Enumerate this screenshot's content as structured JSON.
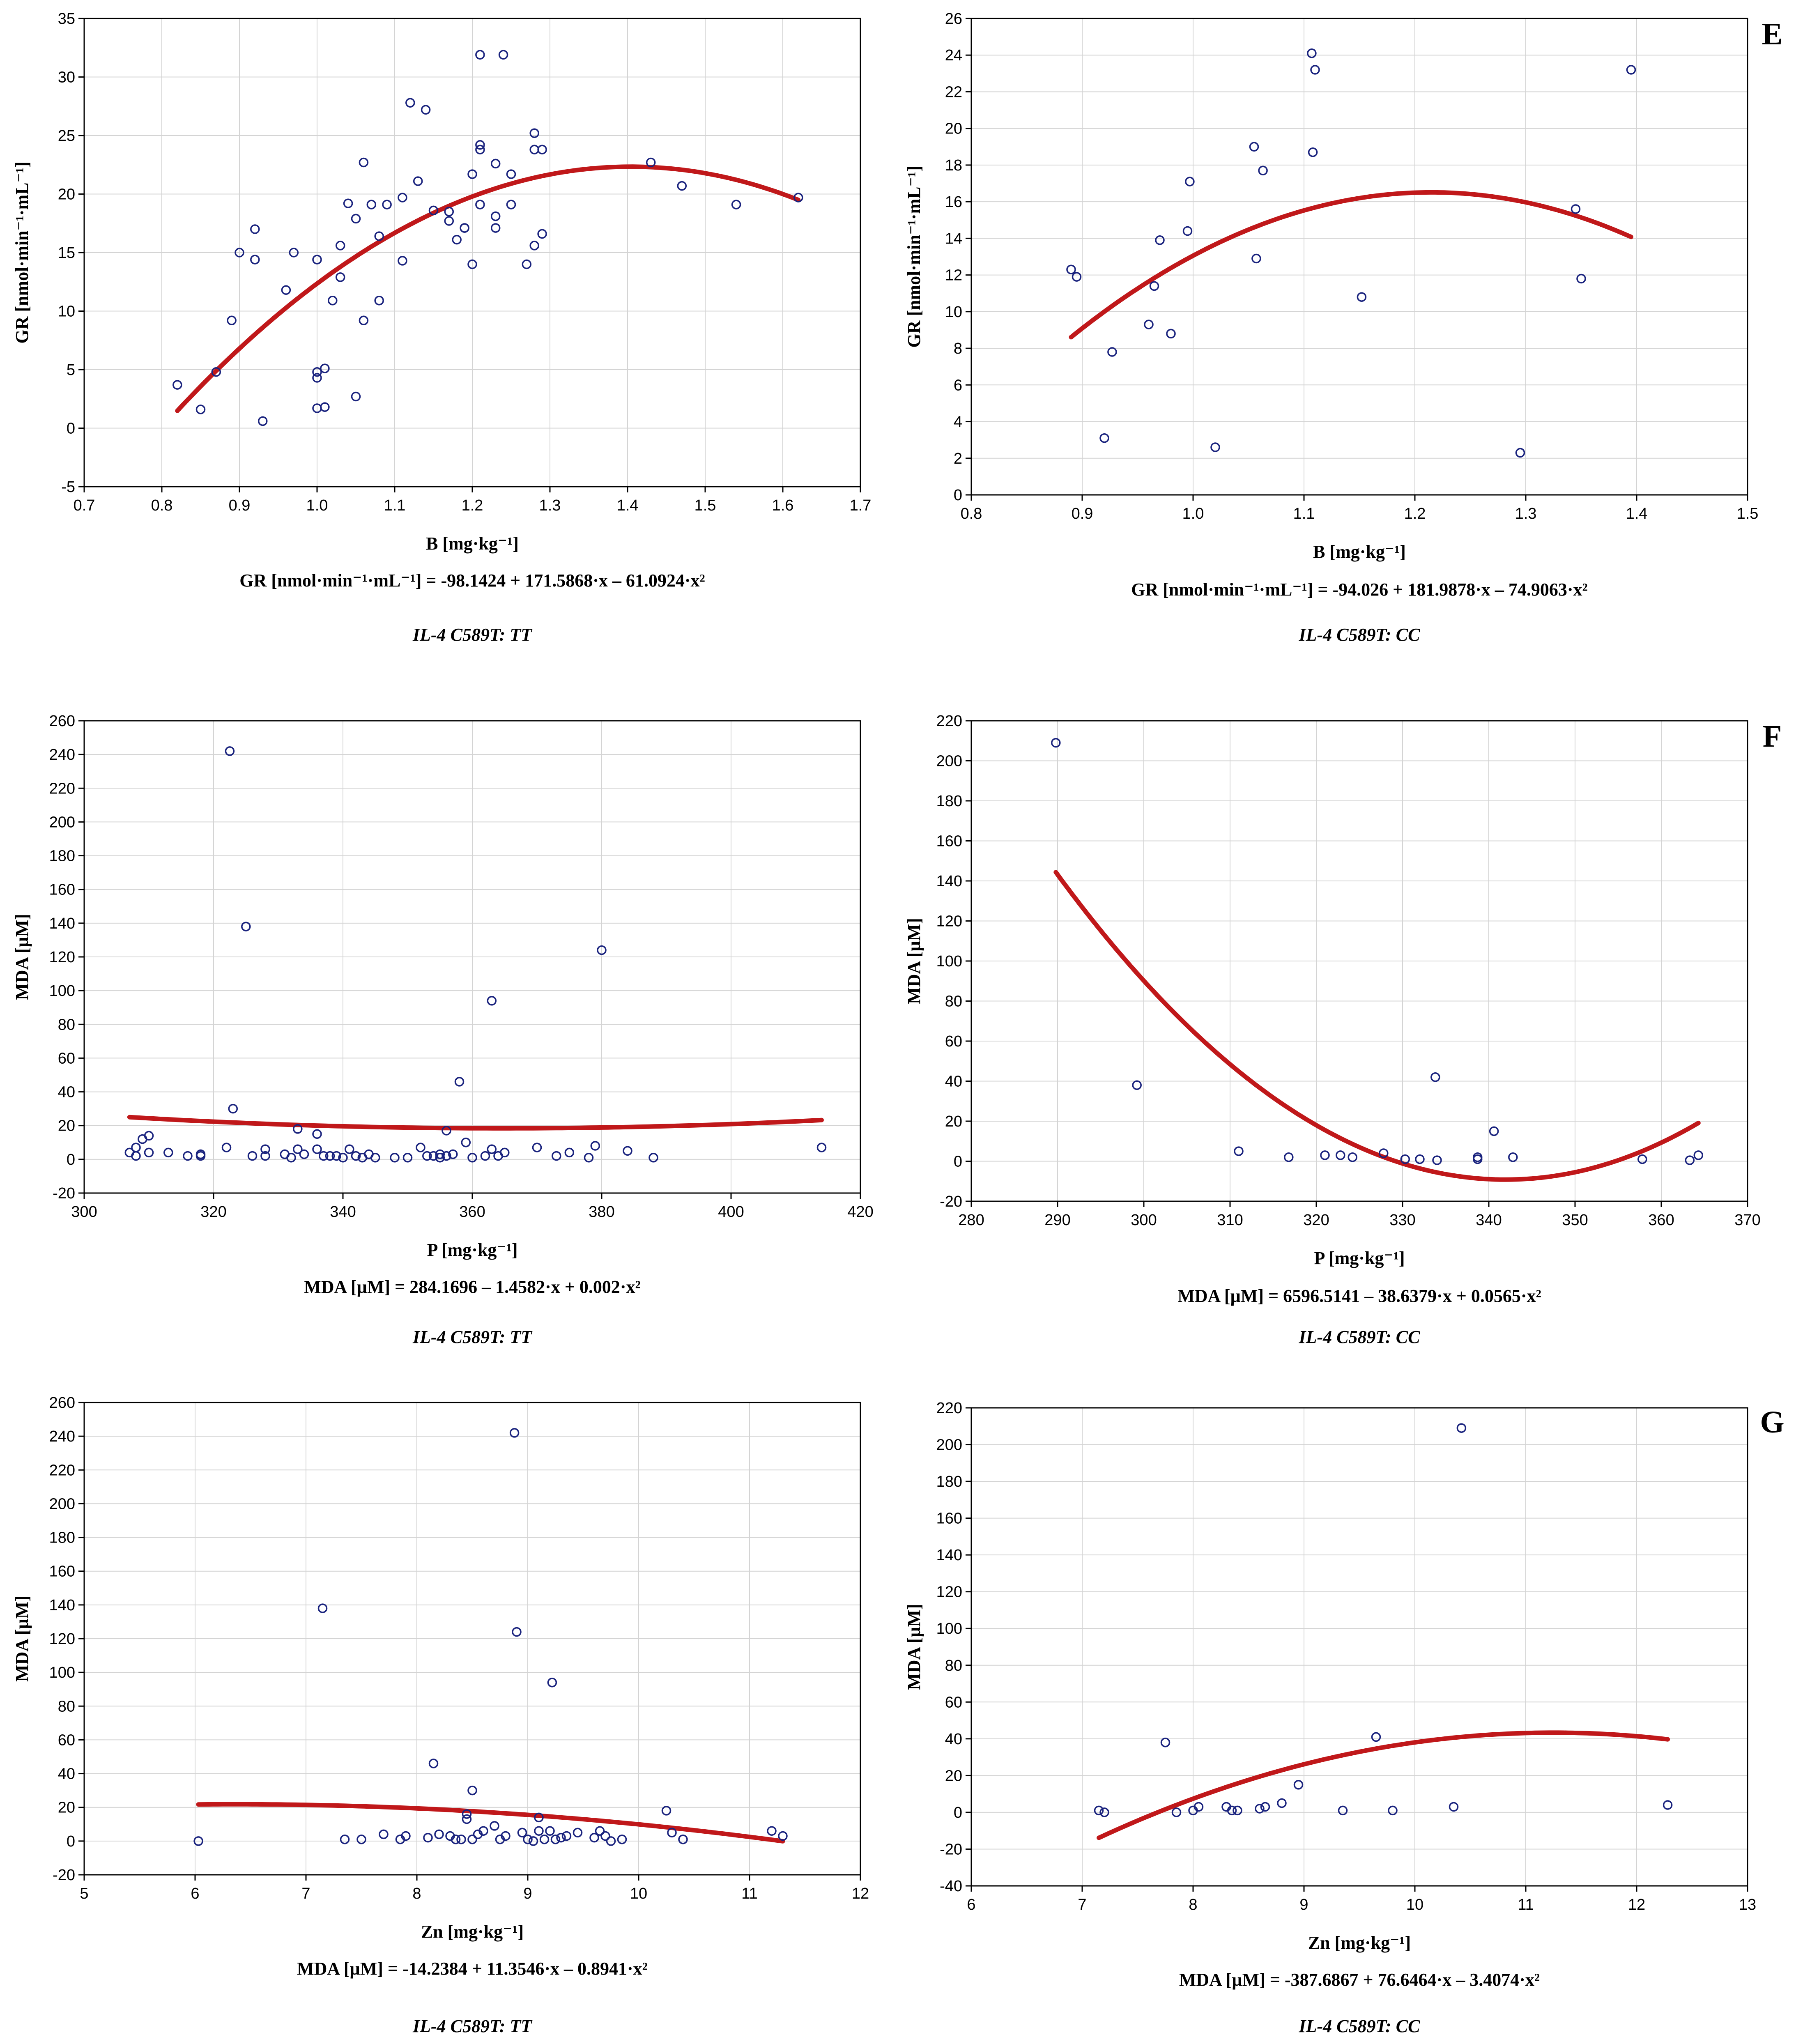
{
  "chart_data": [
    {
      "id": "gr-b-tt",
      "type": "scatter",
      "panel_label": "",
      "xlabel": "B [mg·kg⁻¹]",
      "ylabel": "GR [nmol·min⁻¹·mL⁻¹]",
      "xlim": [
        0.7,
        1.7
      ],
      "ylim": [
        -5,
        35
      ],
      "xticks": [
        "0.7",
        "0.8",
        "0.9",
        "1.0",
        "1.1",
        "1.2",
        "1.3",
        "1.4",
        "1.5",
        "1.6",
        "1.7"
      ],
      "yticks": [
        "-5",
        "0",
        "5",
        "10",
        "15",
        "20",
        "25",
        "30",
        "35"
      ],
      "equation": "GR [nmol·min⁻¹·mL⁻¹] = -98.1424 + 171.5868·x – 61.0924·x²",
      "genotype": "IL-4 C589T: TT",
      "fit": {
        "a": -98.1424,
        "b": 171.5868,
        "c": -61.0924,
        "x_from": 0.82,
        "x_to": 1.62
      },
      "points": [
        [
          0.82,
          3.7
        ],
        [
          0.85,
          1.6
        ],
        [
          0.87,
          4.8
        ],
        [
          0.89,
          9.2
        ],
        [
          0.9,
          15
        ],
        [
          0.92,
          14.4
        ],
        [
          0.92,
          17
        ],
        [
          0.93,
          0.6
        ],
        [
          0.96,
          11.8
        ],
        [
          0.97,
          15
        ],
        [
          1.0,
          14.4
        ],
        [
          1.0,
          1.7
        ],
        [
          1.0,
          4.3
        ],
        [
          1.0,
          4.8
        ],
        [
          1.01,
          1.8
        ],
        [
          1.01,
          5.1
        ],
        [
          1.02,
          10.9
        ],
        [
          1.03,
          12.9
        ],
        [
          1.03,
          15.6
        ],
        [
          1.04,
          19.2
        ],
        [
          1.05,
          17.9
        ],
        [
          1.05,
          2.7
        ],
        [
          1.06,
          22.7
        ],
        [
          1.06,
          9.2
        ],
        [
          1.07,
          19.1
        ],
        [
          1.08,
          10.9
        ],
        [
          1.08,
          16.4
        ],
        [
          1.09,
          19.1
        ],
        [
          1.11,
          14.3
        ],
        [
          1.11,
          19.7
        ],
        [
          1.12,
          27.8
        ],
        [
          1.13,
          21.1
        ],
        [
          1.14,
          27.2
        ],
        [
          1.15,
          18.6
        ],
        [
          1.17,
          17.7
        ],
        [
          1.17,
          18.5
        ],
        [
          1.18,
          16.1
        ],
        [
          1.19,
          17.1
        ],
        [
          1.19,
          17.1
        ],
        [
          1.2,
          14
        ],
        [
          1.2,
          21.7
        ],
        [
          1.21,
          23.8
        ],
        [
          1.21,
          24.2
        ],
        [
          1.21,
          19.1
        ],
        [
          1.21,
          31.9
        ],
        [
          1.23,
          22.6
        ],
        [
          1.23,
          17.1
        ],
        [
          1.23,
          18.1
        ],
        [
          1.24,
          31.9
        ],
        [
          1.25,
          19.1
        ],
        [
          1.25,
          21.7
        ],
        [
          1.27,
          14
        ],
        [
          1.28,
          25.2
        ],
        [
          1.28,
          23.8
        ],
        [
          1.28,
          15.6
        ],
        [
          1.29,
          23.8
        ],
        [
          1.29,
          16.6
        ],
        [
          1.43,
          22.7
        ],
        [
          1.47,
          20.7
        ],
        [
          1.54,
          19.1
        ],
        [
          1.62,
          19.7
        ]
      ]
    },
    {
      "id": "gr-b-cc",
      "type": "scatter",
      "panel_label": "E",
      "xlabel": "B [mg·kg⁻¹]",
      "ylabel": "GR [nmol·min⁻¹·mL⁻¹]",
      "xlim": [
        0.8,
        1.5
      ],
      "ylim": [
        0,
        26
      ],
      "xticks": [
        "0.8",
        "0.9",
        "1.0",
        "1.1",
        "1.2",
        "1.3",
        "1.4",
        "1.5"
      ],
      "yticks": [
        "0",
        "2",
        "4",
        "6",
        "8",
        "10",
        "12",
        "14",
        "16",
        "18",
        "20",
        "22",
        "24",
        "26"
      ],
      "equation": "GR [nmol·min⁻¹·mL⁻¹] = -94.026 + 181.9878·x – 74.9063·x²",
      "genotype": "IL-4 C589T: CC",
      "fit": {
        "a": -94.026,
        "b": 181.9878,
        "c": -74.9063,
        "x_from": 0.89,
        "x_to": 1.395
      },
      "points": [
        [
          0.89,
          12.3
        ],
        [
          0.895,
          11.9
        ],
        [
          0.92,
          3.1
        ],
        [
          0.927,
          7.8
        ],
        [
          0.96,
          9.3
        ],
        [
          0.965,
          11.4
        ],
        [
          0.97,
          13.9
        ],
        [
          0.98,
          8.8
        ],
        [
          0.995,
          14.4
        ],
        [
          0.997,
          17.1
        ],
        [
          1.02,
          2.6
        ],
        [
          1.055,
          19
        ],
        [
          1.057,
          12.9
        ],
        [
          1.063,
          17.7
        ],
        [
          1.107,
          24.1
        ],
        [
          1.108,
          18.7
        ],
        [
          1.11,
          23.2
        ],
        [
          1.152,
          10.8
        ],
        [
          1.295,
          2.3
        ],
        [
          1.345,
          15.6
        ],
        [
          1.35,
          11.8
        ],
        [
          1.395,
          23.2
        ]
      ]
    },
    {
      "id": "mda-p-tt",
      "type": "scatter",
      "panel_label": "",
      "xlabel": "P [mg·kg⁻¹]",
      "ylabel": "MDA [µM]",
      "xlim": [
        300,
        420
      ],
      "ylim": [
        -20,
        260
      ],
      "xticks": [
        "300",
        "320",
        "340",
        "360",
        "380",
        "400",
        "420"
      ],
      "yticks": [
        "-20",
        "0",
        "20",
        "40",
        "60",
        "80",
        "100",
        "120",
        "140",
        "160",
        "180",
        "200",
        "220",
        "240",
        "260"
      ],
      "equation": "MDA [µM] = 284.1696 – 1.4582·x + 0.002·x²",
      "genotype": "IL-4 C589T: TT",
      "fit": {
        "a": 284.1696,
        "b": -1.4582,
        "c": 0.002,
        "x_from": 307,
        "x_to": 414
      },
      "points": [
        [
          307,
          4
        ],
        [
          308,
          2
        ],
        [
          308,
          7
        ],
        [
          309,
          12
        ],
        [
          310,
          4
        ],
        [
          310,
          14
        ],
        [
          313,
          4
        ],
        [
          316,
          2
        ],
        [
          318,
          3
        ],
        [
          318,
          2
        ],
        [
          322,
          7
        ],
        [
          322.5,
          242
        ],
        [
          323,
          30
        ],
        [
          325,
          138
        ],
        [
          326,
          2
        ],
        [
          328,
          6
        ],
        [
          328,
          2
        ],
        [
          331,
          3
        ],
        [
          332,
          1
        ],
        [
          333,
          18
        ],
        [
          333,
          6
        ],
        [
          334,
          3
        ],
        [
          336,
          6
        ],
        [
          336,
          15
        ],
        [
          337,
          2
        ],
        [
          338,
          2
        ],
        [
          339,
          2
        ],
        [
          340,
          1
        ],
        [
          341,
          6
        ],
        [
          342,
          2
        ],
        [
          343,
          1
        ],
        [
          344,
          3
        ],
        [
          345,
          1
        ],
        [
          348,
          1
        ],
        [
          350,
          1
        ],
        [
          352,
          7
        ],
        [
          353,
          2
        ],
        [
          354,
          2
        ],
        [
          355,
          1
        ],
        [
          355,
          3
        ],
        [
          356,
          17
        ],
        [
          356,
          2
        ],
        [
          357,
          3
        ],
        [
          358,
          46
        ],
        [
          359,
          10
        ],
        [
          360,
          1
        ],
        [
          362,
          2
        ],
        [
          363,
          94
        ],
        [
          363,
          6
        ],
        [
          364,
          2
        ],
        [
          365,
          4
        ],
        [
          370,
          7
        ],
        [
          373,
          2
        ],
        [
          375,
          4
        ],
        [
          378,
          1
        ],
        [
          379,
          8
        ],
        [
          380,
          124
        ],
        [
          384,
          5
        ],
        [
          388,
          1
        ],
        [
          414,
          7
        ]
      ]
    },
    {
      "id": "mda-p-cc",
      "type": "scatter",
      "panel_label": "F",
      "xlabel": "P [mg·kg⁻¹]",
      "ylabel": "MDA [µM]",
      "xlim": [
        280,
        370
      ],
      "ylim": [
        -20,
        220
      ],
      "xticks": [
        "280",
        "290",
        "300",
        "310",
        "320",
        "330",
        "340",
        "350",
        "360",
        "370"
      ],
      "yticks": [
        "-20",
        "0",
        "20",
        "40",
        "60",
        "80",
        "100",
        "120",
        "140",
        "160",
        "180",
        "200",
        "220"
      ],
      "equation": "MDA [µM] = 6596.5141 – 38.6379·x + 0.0565·x²",
      "genotype": "IL-4 C589T: CC",
      "fit": {
        "a": 6596.5141,
        "b": -38.6379,
        "c": 0.0565,
        "x_from": 289.8,
        "x_to": 364.3
      },
      "points": [
        [
          289.8,
          209
        ],
        [
          299.2,
          38
        ],
        [
          311,
          5
        ],
        [
          316.8,
          2
        ],
        [
          321,
          3
        ],
        [
          322.8,
          3
        ],
        [
          324.2,
          2
        ],
        [
          327.8,
          4
        ],
        [
          330.3,
          1
        ],
        [
          332,
          1
        ],
        [
          333.8,
          42
        ],
        [
          334,
          0.5
        ],
        [
          338.7,
          1
        ],
        [
          338.7,
          2
        ],
        [
          340.6,
          15
        ],
        [
          342.8,
          2
        ],
        [
          357.8,
          1
        ],
        [
          363.3,
          0.5
        ],
        [
          364.3,
          3
        ]
      ]
    },
    {
      "id": "mda-zn-tt",
      "type": "scatter",
      "panel_label": "",
      "xlabel": "Zn [mg·kg⁻¹]",
      "ylabel": "MDA [µM]",
      "xlim": [
        5,
        12
      ],
      "ylim": [
        -20,
        260
      ],
      "xticks": [
        "5",
        "6",
        "7",
        "8",
        "9",
        "10",
        "11",
        "12"
      ],
      "yticks": [
        "-20",
        "0",
        "20",
        "40",
        "60",
        "80",
        "100",
        "120",
        "140",
        "160",
        "180",
        "200",
        "220",
        "240",
        "260"
      ],
      "equation": "MDA [µM] = -14.2384 + 11.3546·x – 0.8941·x²",
      "genotype": "IL-4 C589T: TT",
      "fit": {
        "a": -14.2384,
        "b": 11.3546,
        "c": -0.8941,
        "x_from": 6.03,
        "x_to": 11.3
      },
      "points": [
        [
          6.03,
          0
        ],
        [
          7.15,
          138
        ],
        [
          7.35,
          1
        ],
        [
          7.5,
          1
        ],
        [
          7.7,
          4
        ],
        [
          7.85,
          1
        ],
        [
          7.9,
          3
        ],
        [
          8.1,
          2
        ],
        [
          8.15,
          46
        ],
        [
          8.2,
          4
        ],
        [
          8.3,
          3
        ],
        [
          8.35,
          1
        ],
        [
          8.4,
          1
        ],
        [
          8.45,
          13
        ],
        [
          8.45,
          16
        ],
        [
          8.5,
          30
        ],
        [
          8.5,
          1
        ],
        [
          8.55,
          4
        ],
        [
          8.6,
          6
        ],
        [
          8.7,
          9
        ],
        [
          8.75,
          1
        ],
        [
          8.8,
          3
        ],
        [
          8.88,
          242
        ],
        [
          8.9,
          124
        ],
        [
          8.95,
          5
        ],
        [
          9.0,
          1
        ],
        [
          9.05,
          0
        ],
        [
          9.1,
          6
        ],
        [
          9.1,
          14
        ],
        [
          9.15,
          1
        ],
        [
          9.2,
          6
        ],
        [
          9.22,
          94
        ],
        [
          9.25,
          1
        ],
        [
          9.3,
          2
        ],
        [
          9.35,
          3
        ],
        [
          9.45,
          5
        ],
        [
          9.6,
          2
        ],
        [
          9.65,
          6
        ],
        [
          9.7,
          3
        ],
        [
          9.75,
          0
        ],
        [
          9.85,
          1
        ],
        [
          10.25,
          18
        ],
        [
          10.3,
          5
        ],
        [
          10.4,
          1
        ],
        [
          11.2,
          6
        ],
        [
          11.3,
          3
        ]
      ]
    },
    {
      "id": "mda-zn-cc",
      "type": "scatter",
      "panel_label": "G",
      "xlabel": "Zn [mg·kg⁻¹]",
      "ylabel": "MDA [µM]",
      "xlim": [
        6,
        13
      ],
      "ylim": [
        -40,
        220
      ],
      "xticks": [
        "6",
        "7",
        "8",
        "9",
        "10",
        "11",
        "12",
        "13"
      ],
      "yticks": [
        "-40",
        "-20",
        "0",
        "20",
        "40",
        "60",
        "80",
        "100",
        "120",
        "140",
        "160",
        "180",
        "200",
        "220"
      ],
      "equation": "MDA [µM] = -387.6867 + 76.6464·x – 3.4074·x²",
      "genotype": "IL-4 C589T: CC",
      "fit": {
        "a": -387.6867,
        "b": 76.6464,
        "c": -3.4074,
        "x_from": 7.15,
        "x_to": 12.28
      },
      "points": [
        [
          7.15,
          1
        ],
        [
          7.2,
          0
        ],
        [
          7.75,
          38
        ],
        [
          7.85,
          0
        ],
        [
          8.0,
          1
        ],
        [
          8.05,
          3
        ],
        [
          8.3,
          3
        ],
        [
          8.35,
          1
        ],
        [
          8.4,
          1
        ],
        [
          8.6,
          2
        ],
        [
          8.65,
          3
        ],
        [
          8.8,
          5
        ],
        [
          8.95,
          15
        ],
        [
          9.35,
          1
        ],
        [
          9.65,
          41
        ],
        [
          9.8,
          1
        ],
        [
          10.35,
          3
        ],
        [
          10.42,
          209
        ],
        [
          12.28,
          4
        ]
      ]
    }
  ]
}
